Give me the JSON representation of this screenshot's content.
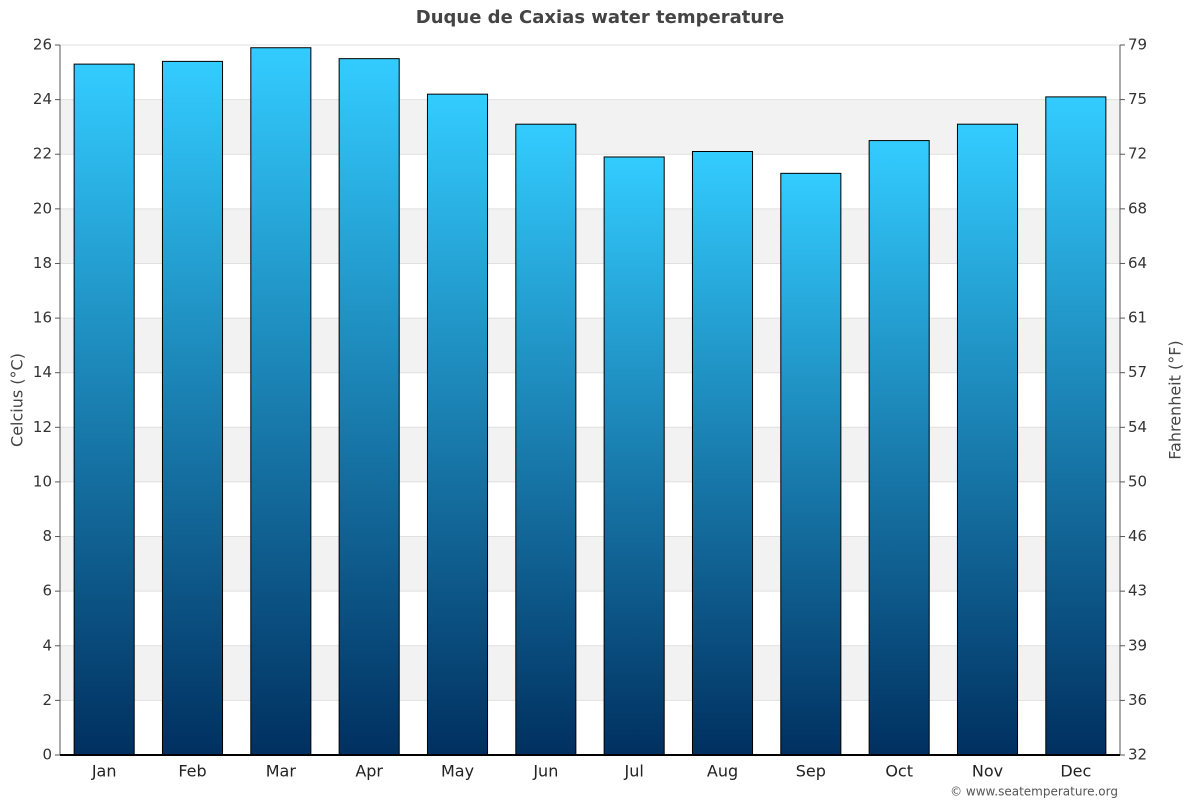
{
  "chart_data": {
    "type": "bar",
    "title": "Duque de Caxias water temperature",
    "y_label": "Celcius (°C)",
    "y2_label": "Fahrenheit (°F)",
    "credit": "© www.seatemperature.org",
    "categories": [
      "Jan",
      "Feb",
      "Mar",
      "Apr",
      "May",
      "Jun",
      "Jul",
      "Aug",
      "Sep",
      "Oct",
      "Nov",
      "Dec"
    ],
    "values": [
      25.3,
      25.4,
      25.9,
      25.5,
      24.2,
      23.1,
      21.9,
      22.1,
      21.3,
      22.5,
      23.1,
      24.1
    ],
    "gradient": [
      "#33ccff",
      "#003060"
    ],
    "ylim": [
      0,
      26
    ],
    "yticks": [
      0,
      2,
      4,
      6,
      8,
      10,
      12,
      14,
      16,
      18,
      20,
      22,
      24,
      26
    ],
    "y2lim": [
      32,
      78.8
    ],
    "y2ticks": [
      32,
      {
        "value": 35.6,
        "label": "36"
      },
      {
        "value": 39.2,
        "label": "39"
      },
      {
        "value": 42.8,
        "label": "43"
      },
      {
        "value": 46.4,
        "label": "46"
      },
      50,
      {
        "value": 53.6,
        "label": "54"
      },
      {
        "value": 57.2,
        "label": "57"
      },
      {
        "value": 60.8,
        "label": "61"
      },
      {
        "value": 64.4,
        "label": "64"
      },
      68,
      {
        "value": 71.6,
        "label": "72"
      },
      {
        "value": 75.2,
        "label": "75"
      },
      {
        "value": 78.8,
        "label": "79"
      }
    ],
    "grid": true
  }
}
